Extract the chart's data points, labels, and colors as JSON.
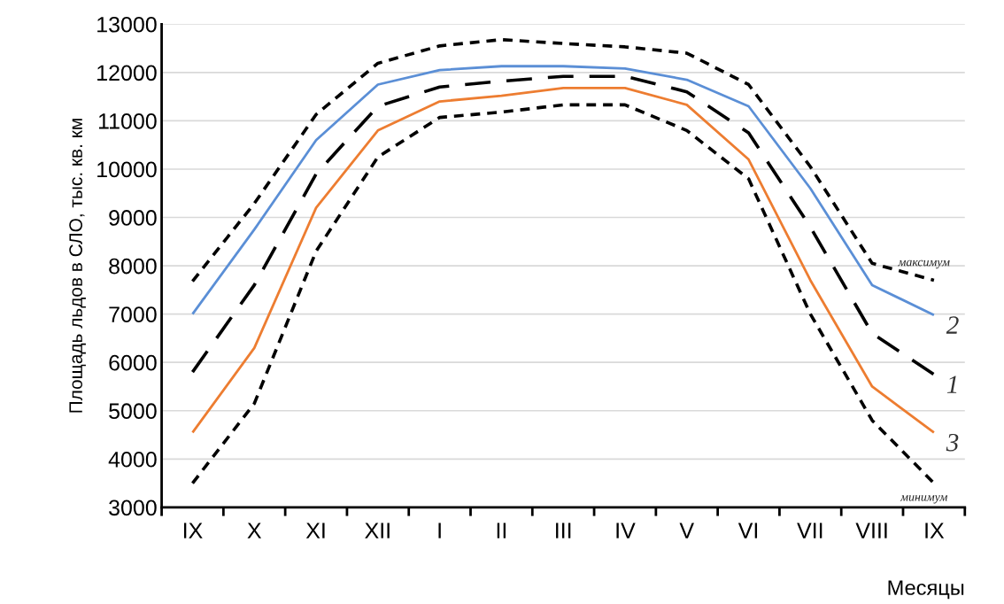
{
  "chart_data": {
    "type": "line",
    "ylabel": "Площадь льдов в СЛО, тыс. кв. км",
    "xlabel": "Месяцы",
    "categories": [
      "IX",
      "X",
      "XI",
      "XII",
      "I",
      "II",
      "III",
      "IV",
      "V",
      "VI",
      "VII",
      "VIII",
      "IX"
    ],
    "ylim": [
      3000,
      13000
    ],
    "yticks": [
      3000,
      4000,
      5000,
      6000,
      7000,
      8000,
      9000,
      10000,
      11000,
      12000,
      13000
    ],
    "grid": "y",
    "legend": false,
    "series": [
      {
        "name": "максимум",
        "color": "#000000",
        "line_style": "dotted",
        "values": [
          7680,
          9290,
          11130,
          12190,
          12550,
          12680,
          12600,
          12530,
          12400,
          11750,
          10050,
          8050,
          7700
        ]
      },
      {
        "name": "2",
        "color": "#5b8fd6",
        "line_style": "solid",
        "values": [
          7000,
          8750,
          10600,
          11750,
          12050,
          12130,
          12130,
          12080,
          11850,
          11300,
          9600,
          7600,
          6980
        ]
      },
      {
        "name": "1",
        "color": "#000000",
        "line_style": "dashed",
        "values": [
          5800,
          7600,
          9900,
          11300,
          11700,
          11820,
          11920,
          11920,
          11600,
          10750,
          8800,
          6600,
          5750
        ]
      },
      {
        "name": "3",
        "color": "#ed7d31",
        "line_style": "solid",
        "values": [
          4550,
          6300,
          9200,
          10800,
          11400,
          11520,
          11680,
          11680,
          11330,
          10200,
          7700,
          5500,
          4550
        ]
      },
      {
        "name": "минимум",
        "color": "#000000",
        "line_style": "dotted",
        "values": [
          3500,
          5150,
          8300,
          10250,
          11070,
          11180,
          11330,
          11330,
          10800,
          9800,
          7000,
          4800,
          3500
        ]
      }
    ]
  }
}
